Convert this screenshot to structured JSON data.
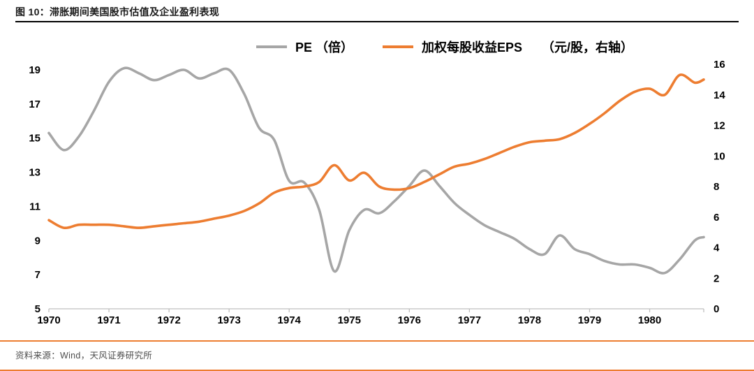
{
  "footer": {
    "source": "资料来源：Wind，天风证券研究所"
  },
  "chart_data": {
    "type": "line",
    "title": "图 10：滞胀期间美国股市估值及企业盈利表现",
    "grid": false,
    "legend_position": "top",
    "colors": {
      "pe": "#A6A6A6",
      "eps": "#ED7D31",
      "axis": "#BFBFBF"
    },
    "x_axis": {
      "min": 1970,
      "max": 1980.9,
      "ticks": [
        1970,
        1971,
        1972,
        1973,
        1974,
        1975,
        1976,
        1977,
        1978,
        1979,
        1980
      ]
    },
    "left_axis": {
      "min": 5,
      "max": 19,
      "ticks": [
        19,
        17,
        15,
        13,
        11,
        9,
        7,
        5
      ]
    },
    "right_axis": {
      "min": 0,
      "max": 16,
      "ticks": [
        16,
        14,
        12,
        10,
        8,
        6,
        4,
        2,
        0
      ]
    },
    "x": [
      1970,
      1970.25,
      1970.5,
      1970.75,
      1971,
      1971.25,
      1971.5,
      1971.75,
      1972,
      1972.25,
      1972.5,
      1972.75,
      1973,
      1973.25,
      1973.5,
      1973.75,
      1974,
      1974.25,
      1974.5,
      1974.75,
      1975,
      1975.25,
      1975.5,
      1975.75,
      1976,
      1976.25,
      1976.5,
      1976.75,
      1977,
      1977.25,
      1977.5,
      1977.75,
      1978,
      1978.25,
      1978.5,
      1978.75,
      1979,
      1979.25,
      1979.5,
      1979.75,
      1980,
      1980.25,
      1980.5,
      1980.75,
      1980.9
    ],
    "series": [
      {
        "name": "PE （倍）",
        "axis": "left",
        "color": "#A6A6A6",
        "values": [
          15.3,
          14.3,
          15.1,
          16.6,
          18.3,
          19.1,
          18.8,
          18.4,
          18.7,
          19.0,
          18.5,
          18.8,
          19.0,
          17.6,
          15.6,
          14.9,
          12.5,
          12.4,
          10.8,
          7.2,
          9.6,
          10.8,
          10.6,
          11.3,
          12.2,
          13.1,
          12.2,
          11.2,
          10.5,
          9.9,
          9.5,
          9.1,
          8.5,
          8.2,
          9.3,
          8.5,
          8.2,
          7.8,
          7.6,
          7.6,
          7.4,
          7.1,
          7.9,
          9.0,
          9.2
        ]
      },
      {
        "name": "加权每股收益EPS",
        "unit_label": "（元/股，右轴）",
        "axis": "right",
        "color": "#ED7D31",
        "values": [
          5.8,
          5.3,
          5.5,
          5.5,
          5.5,
          5.4,
          5.3,
          5.4,
          5.5,
          5.6,
          5.7,
          5.9,
          6.1,
          6.4,
          6.9,
          7.6,
          7.9,
          8.0,
          8.3,
          9.4,
          8.4,
          8.9,
          8.0,
          7.8,
          7.9,
          8.3,
          8.8,
          9.3,
          9.5,
          9.8,
          10.2,
          10.6,
          10.9,
          11.0,
          11.1,
          11.5,
          12.1,
          12.8,
          13.6,
          14.2,
          14.4,
          14.0,
          15.3,
          14.8,
          15.0
        ]
      }
    ]
  }
}
